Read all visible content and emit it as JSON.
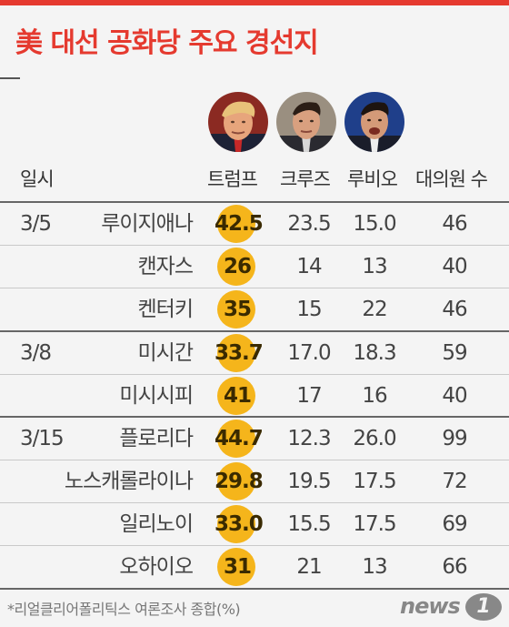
{
  "title": "美 대선 공화당 주요 경선지",
  "headers": {
    "date": "일시",
    "trump": "트럼프",
    "cruz": "크루즈",
    "rubio": "루비오",
    "delegates": "대의원 수"
  },
  "rows": [
    {
      "date": "3/5",
      "state": "루이지애나",
      "trump": "42.5",
      "cruz": "23.5",
      "rubio": "15.0",
      "delegates": "46"
    },
    {
      "date": "",
      "state": "캔자스",
      "trump": "26",
      "cruz": "14",
      "rubio": "13",
      "delegates": "40"
    },
    {
      "date": "",
      "state": "켄터키",
      "trump": "35",
      "cruz": "15",
      "rubio": "22",
      "delegates": "46"
    },
    {
      "date": "3/8",
      "state": "미시간",
      "trump": "33.7",
      "cruz": "17.0",
      "rubio": "18.3",
      "delegates": "59"
    },
    {
      "date": "",
      "state": "미시시피",
      "trump": "41",
      "cruz": "17",
      "rubio": "16",
      "delegates": "40"
    },
    {
      "date": "3/15",
      "state": "플로리다",
      "trump": "44.7",
      "cruz": "12.3",
      "rubio": "26.0",
      "delegates": "99"
    },
    {
      "date": "",
      "state": "노스캐롤라이나",
      "trump": "29.8",
      "cruz": "19.5",
      "rubio": "17.5",
      "delegates": "72"
    },
    {
      "date": "",
      "state": "일리노이",
      "trump": "33.0",
      "cruz": "15.5",
      "rubio": "17.5",
      "delegates": "69"
    },
    {
      "date": "",
      "state": "오하이오",
      "trump": "31",
      "cruz": "21",
      "rubio": "13",
      "delegates": "66"
    }
  ],
  "footnote": "*리얼클리어폴리틱스 여론조사 종합(%)",
  "logo": {
    "text": "news",
    "mark": "1"
  },
  "colors": {
    "accent": "#e53a2f",
    "highlight": "#f5b51b"
  }
}
